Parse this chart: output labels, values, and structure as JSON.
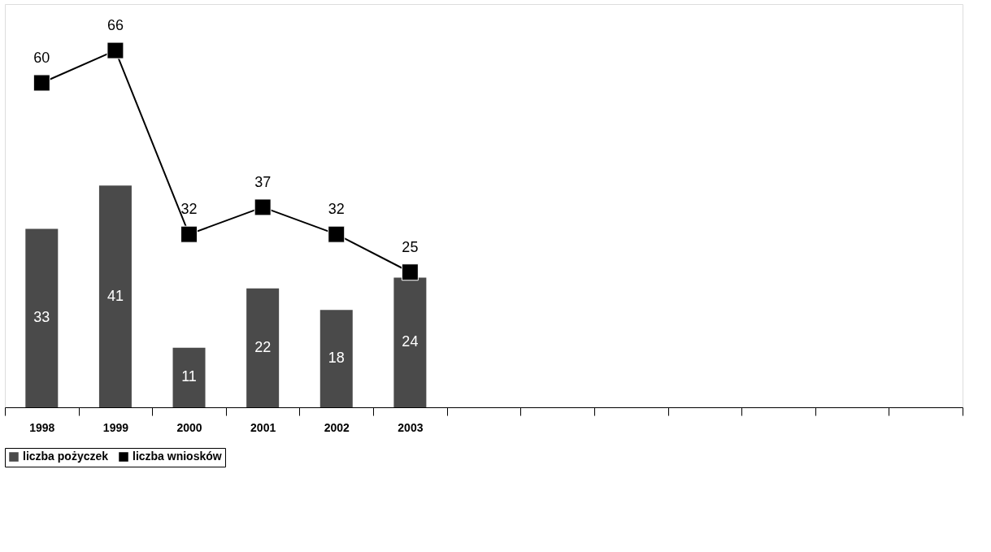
{
  "chart_data": {
    "type": "bar",
    "categories": [
      "1998",
      "1999",
      "2000",
      "2001",
      "2002",
      "2003",
      null,
      null,
      null,
      null,
      null,
      null,
      null
    ],
    "series": [
      {
        "name": "liczba pożyczek",
        "color": "#4a4a4a",
        "values": [
          33,
          41,
          11,
          22,
          18,
          24,
          null,
          null,
          null,
          null,
          null,
          null,
          null
        ]
      },
      {
        "name": "liczba wniosków",
        "type": "line",
        "color": "#000000",
        "marker": "square",
        "values": [
          60,
          66,
          32,
          37,
          32,
          25,
          null,
          null,
          null,
          null,
          null,
          null,
          null
        ]
      }
    ],
    "data_labels": true,
    "legend": "bottom",
    "grid": false
  }
}
